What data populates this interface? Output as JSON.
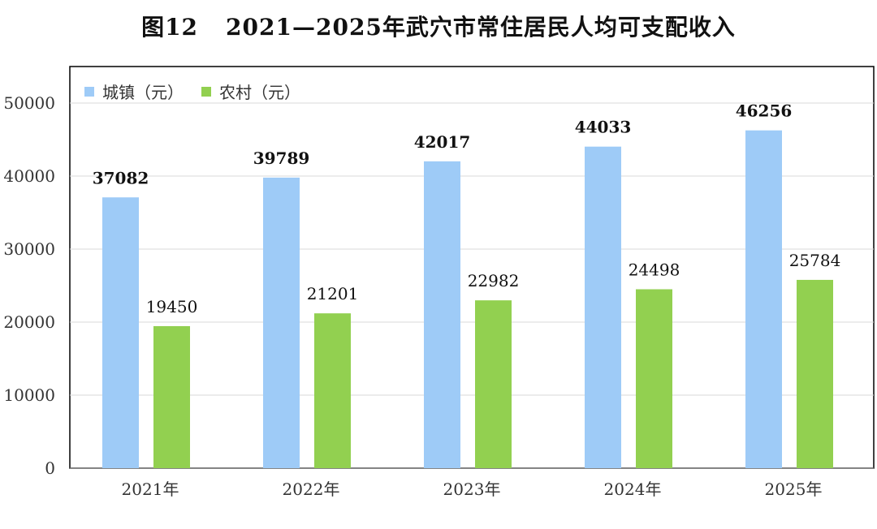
{
  "title": {
    "figure": "图12",
    "text": "2021—2025年武穴市常住居民人均可支配收入"
  },
  "legend": [
    {
      "label": "城镇（元）",
      "color": "#9ECBF7"
    },
    {
      "label": "农村（元）",
      "color": "#92D050"
    }
  ],
  "chart_data": {
    "type": "bar",
    "title": "2021—2025年武穴市常住居民人均可支配收入",
    "categories": [
      "2021年",
      "2022年",
      "2023年",
      "2024年",
      "2025年"
    ],
    "series": [
      {
        "name": "城镇（元）",
        "values": [
          37082,
          39789,
          42017,
          44033,
          46256
        ],
        "color": "#9ECBF7"
      },
      {
        "name": "农村（元）",
        "values": [
          19450,
          21201,
          22982,
          24498,
          25784
        ],
        "color": "#92D050"
      }
    ],
    "ylim": [
      0,
      50000
    ],
    "yticks": [
      "0",
      "10000",
      "20000",
      "30000",
      "40000",
      "50000"
    ],
    "grid": true,
    "legend_position": "top-left"
  }
}
